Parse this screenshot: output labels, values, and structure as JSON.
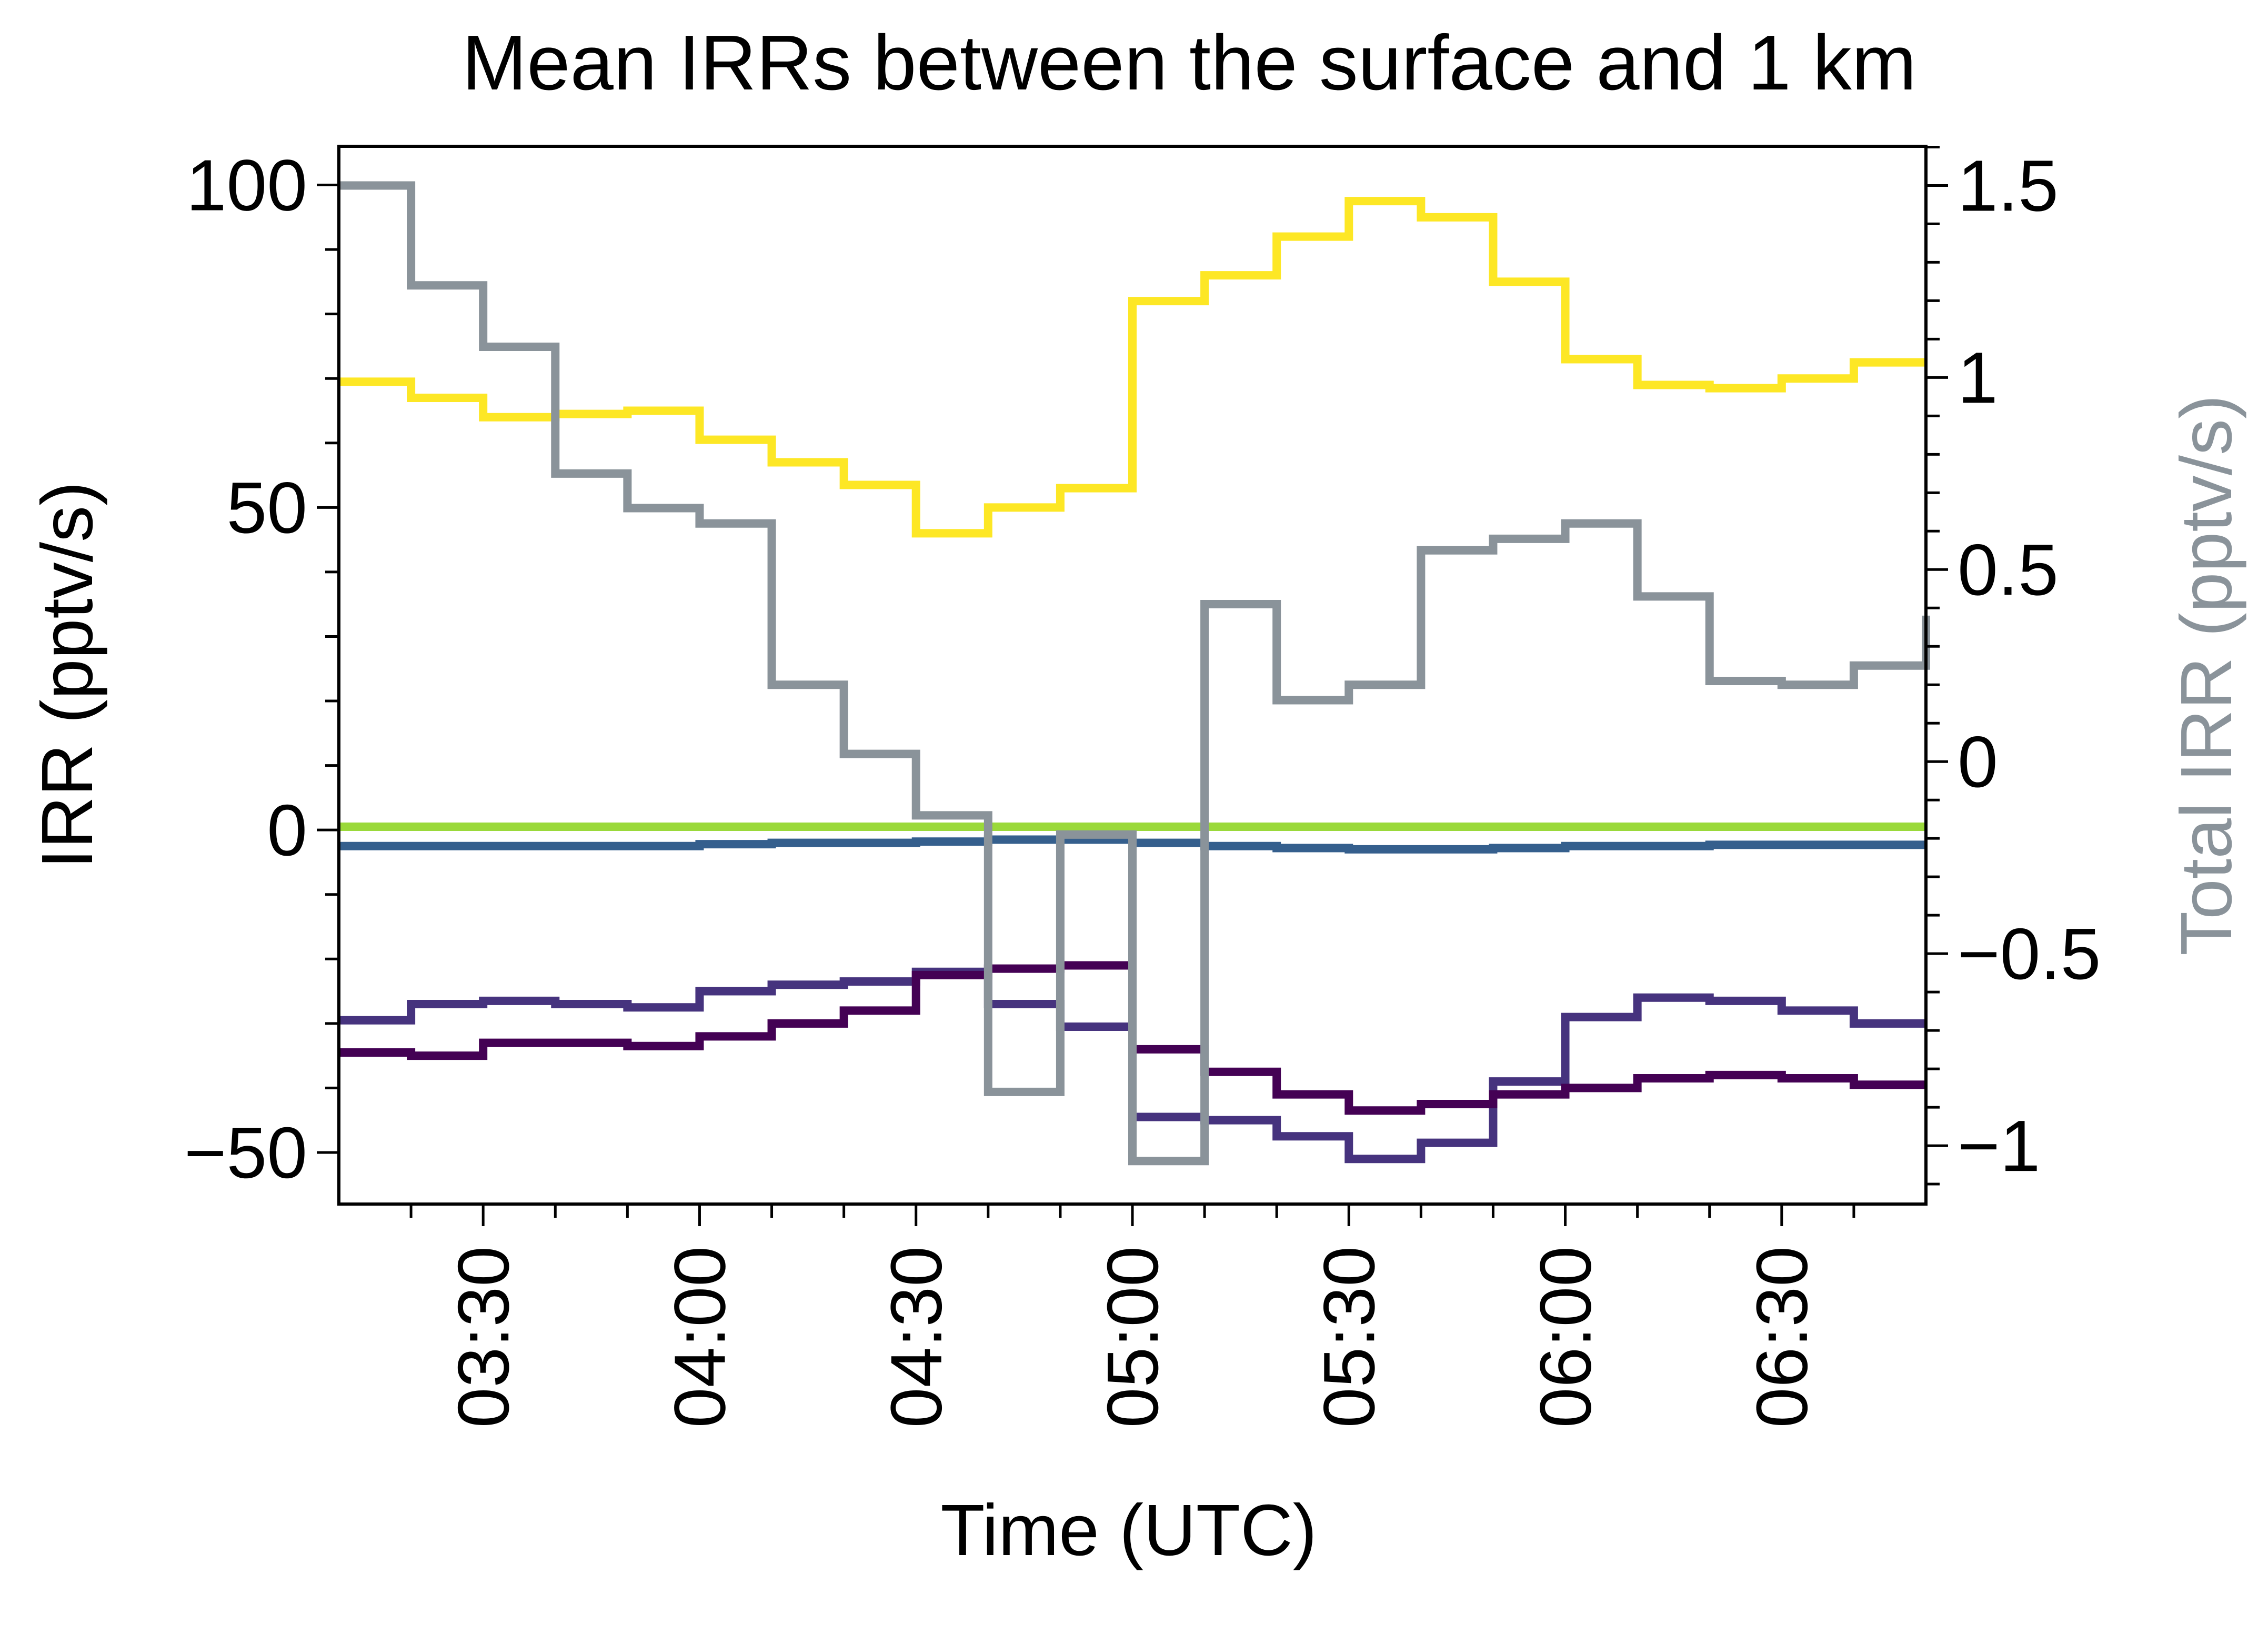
{
  "chart_data": {
    "type": "line",
    "title": "Mean IRRs between the surface and 1 km",
    "xlabel": "Time (UTC)",
    "ylabel": "IRR (pptv/s)",
    "y2label": "Total IRR (pptv/s)",
    "x_ticks": [
      "03:30",
      "04:00",
      "04:30",
      "05:00",
      "05:30",
      "06:00",
      "06:30"
    ],
    "x_tick_minutes": [
      210,
      240,
      270,
      300,
      330,
      360,
      390
    ],
    "xlim": [
      190,
      410
    ],
    "ylim": [
      -58,
      106
    ],
    "y_ticks": [
      -50,
      0,
      50,
      100
    ],
    "y_tick_labels": [
      "−50",
      "0",
      "50",
      "100"
    ],
    "y2lim": [
      -1.152,
      1.602
    ],
    "y2_ticks": [
      -1,
      -0.5,
      0,
      0.5,
      1,
      1.5
    ],
    "y2_tick_labels": [
      "−1",
      "−0.5",
      "0",
      "0.5",
      "1",
      "1.5"
    ],
    "step_edges_minutes": [
      190,
      200,
      210,
      220,
      230,
      240,
      250,
      260,
      270,
      280,
      290,
      300,
      310,
      320,
      330,
      340,
      350,
      360,
      370,
      380,
      390,
      400,
      410
    ],
    "series": [
      {
        "axis": "left",
        "color": "#fde725",
        "values": [
          69.5,
          67,
          64,
          64.5,
          65,
          60.5,
          57,
          53.5,
          46,
          50,
          53,
          82,
          86,
          92,
          97.5,
          95,
          85,
          73,
          69,
          68.5,
          70,
          72.5
        ]
      },
      {
        "axis": "left",
        "color": "#9ad93a",
        "values": [
          0.5,
          0.5,
          0.5,
          0.5,
          0.5,
          0.5,
          0.5,
          0.5,
          0.5,
          0.5,
          0.5,
          0.5,
          0.5,
          0.5,
          0.5,
          0.5,
          0.5,
          0.5,
          0.5,
          0.5,
          0.5,
          0.5
        ]
      },
      {
        "axis": "left",
        "color": "#355f8d",
        "values": [
          -2.5,
          -2.5,
          -2.5,
          -2.5,
          -2.5,
          -2.2,
          -2,
          -2,
          -1.8,
          -1.5,
          -1.5,
          -2,
          -2.5,
          -2.8,
          -3,
          -3,
          -2.8,
          -2.5,
          -2.5,
          -2.3,
          -2.3,
          -2.3
        ]
      },
      {
        "axis": "left",
        "color": "#46337e",
        "values": [
          -29.5,
          -27,
          -26.5,
          -27,
          -27.5,
          -25,
          -24,
          -23.5,
          -22,
          -27,
          -30.5,
          -44.5,
          -45,
          -47.5,
          -51,
          -48.5,
          -39,
          -29,
          -26,
          -26.5,
          -28,
          -30
        ]
      },
      {
        "axis": "left",
        "color": "#440154",
        "values": [
          -34.5,
          -35,
          -33,
          -33,
          -33.5,
          -32,
          -30,
          -28,
          -22.5,
          -21.5,
          -21,
          -34,
          -37.5,
          -41,
          -43.5,
          -42.5,
          -41,
          -40,
          -38.5,
          -38,
          -38.5,
          -39.5
        ]
      },
      {
        "axis": "right",
        "color": "#8a939a",
        "values": [
          1.5,
          1.24,
          1.08,
          0.75,
          0.66,
          0.62,
          0.2,
          0.02,
          -0.14,
          -0.86,
          -0.19,
          -1.04,
          0.41,
          0.16,
          0.2,
          0.55,
          0.58,
          0.62,
          0.43,
          0.21,
          0.2,
          0.25,
          0.38
        ]
      }
    ]
  }
}
